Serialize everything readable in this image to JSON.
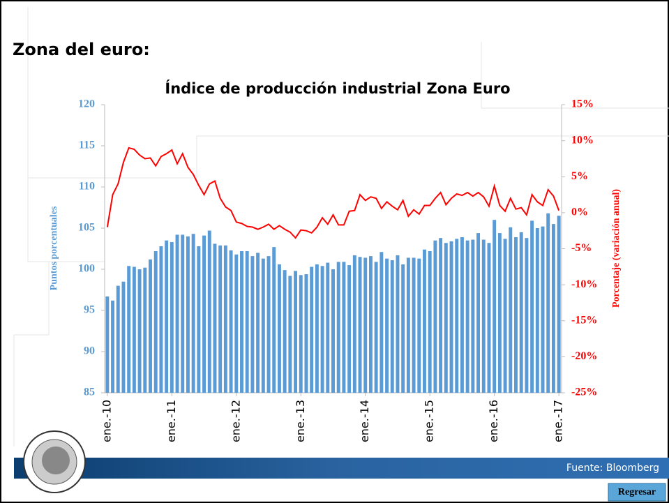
{
  "heading": "Zona del euro:",
  "source": "Fuente: Bloomberg",
  "button": "Regresar",
  "chart_data": {
    "type": "bar-line",
    "title": "Índice de producción industrial Zona Euro",
    "ylabel": "Puntos porcentuales",
    "y2label": "Porcentaje (variación anual)",
    "categories": [
      "ene.-10",
      null,
      null,
      null,
      null,
      null,
      null,
      null,
      null,
      null,
      null,
      null,
      "ene.-11",
      null,
      null,
      null,
      null,
      null,
      null,
      null,
      null,
      null,
      null,
      null,
      "ene.-12",
      null,
      null,
      null,
      null,
      null,
      null,
      null,
      null,
      null,
      null,
      null,
      "ene.-13",
      null,
      null,
      null,
      null,
      null,
      null,
      null,
      null,
      null,
      null,
      null,
      "ene.-14",
      null,
      null,
      null,
      null,
      null,
      null,
      null,
      null,
      null,
      null,
      null,
      "ene.-15",
      null,
      null,
      null,
      null,
      null,
      null,
      null,
      null,
      null,
      null,
      null,
      "ene.-16",
      null,
      null,
      null,
      null,
      null,
      null,
      null,
      null,
      null,
      null,
      null,
      "ene.-17"
    ],
    "series": [
      {
        "kind": "bar",
        "color": "#5b9bd5",
        "values": [
          96.7,
          96.2,
          98.0,
          98.5,
          100.4,
          100.3,
          100.0,
          100.2,
          101.2,
          102.2,
          102.8,
          103.5,
          103.3,
          104.2,
          104.2,
          104.0,
          104.3,
          102.8,
          104.1,
          104.7,
          103.1,
          102.9,
          102.9,
          102.3,
          101.8,
          102.2,
          102.2,
          101.6,
          102.0,
          101.3,
          101.6,
          102.7,
          100.6,
          99.9,
          99.2,
          99.8,
          99.3,
          99.4,
          100.3,
          100.6,
          100.4,
          100.8,
          100.0,
          100.9,
          100.9,
          100.5,
          101.7,
          101.5,
          101.4,
          101.6,
          100.9,
          102.1,
          101.3,
          101.1,
          101.7,
          100.6,
          101.4,
          101.4,
          101.3,
          102.4,
          102.2,
          103.5,
          103.8,
          103.2,
          103.4,
          103.7,
          103.9,
          103.5,
          103.6,
          104.4,
          103.6,
          103.2,
          106.0,
          104.4,
          103.7,
          105.1,
          103.9,
          104.5,
          103.8,
          105.9,
          105.0,
          105.2,
          106.8,
          105.5,
          106.5
        ]
      },
      {
        "kind": "line",
        "axis": "y2",
        "color": "#ff0000",
        "values": [
          -2.0,
          2.5,
          4.0,
          7.0,
          9.0,
          8.8,
          8.0,
          7.5,
          7.6,
          6.5,
          7.8,
          8.2,
          8.7,
          6.8,
          8.2,
          6.3,
          5.3,
          3.8,
          2.5,
          4.0,
          4.4,
          2.0,
          0.8,
          0.3,
          -1.3,
          -1.5,
          -1.9,
          -2.0,
          -2.3,
          -2.0,
          -1.6,
          -2.3,
          -1.8,
          -2.3,
          -2.7,
          -3.5,
          -2.4,
          -2.5,
          -2.8,
          -2.0,
          -0.7,
          -1.6,
          -0.3,
          -1.7,
          -1.7,
          0.2,
          0.3,
          2.5,
          1.7,
          2.2,
          2.0,
          0.6,
          1.5,
          0.9,
          0.4,
          1.7,
          -0.5,
          0.4,
          -0.2,
          1.0,
          1.0,
          2.0,
          2.8,
          1.1,
          2.0,
          2.6,
          2.4,
          2.8,
          2.3,
          2.8,
          2.2,
          0.9,
          3.7,
          1.0,
          0.2,
          2.0,
          0.5,
          0.7,
          -0.3,
          2.5,
          1.5,
          1.0,
          3.2,
          2.3,
          0.3
        ]
      }
    ],
    "ylim": [
      85,
      120
    ],
    "yticks": [
      85,
      90,
      95,
      100,
      105,
      110,
      115,
      120
    ],
    "y2lim": [
      -25,
      15
    ],
    "y2ticks": [
      {
        "value": -25,
        "label": "-25%"
      },
      {
        "value": -20,
        "label": "-20%"
      },
      {
        "value": -15,
        "label": "-15%"
      },
      {
        "value": -10,
        "label": "-10%"
      },
      {
        "value": -5,
        "label": "-5%"
      },
      {
        "value": 0,
        "label": "0%"
      },
      {
        "value": 5,
        "label": "5%"
      },
      {
        "value": 10,
        "label": "10%"
      },
      {
        "value": 15,
        "label": "15%"
      }
    ],
    "ycolor": "#5b9bd5",
    "y2color": "#ff0000"
  }
}
